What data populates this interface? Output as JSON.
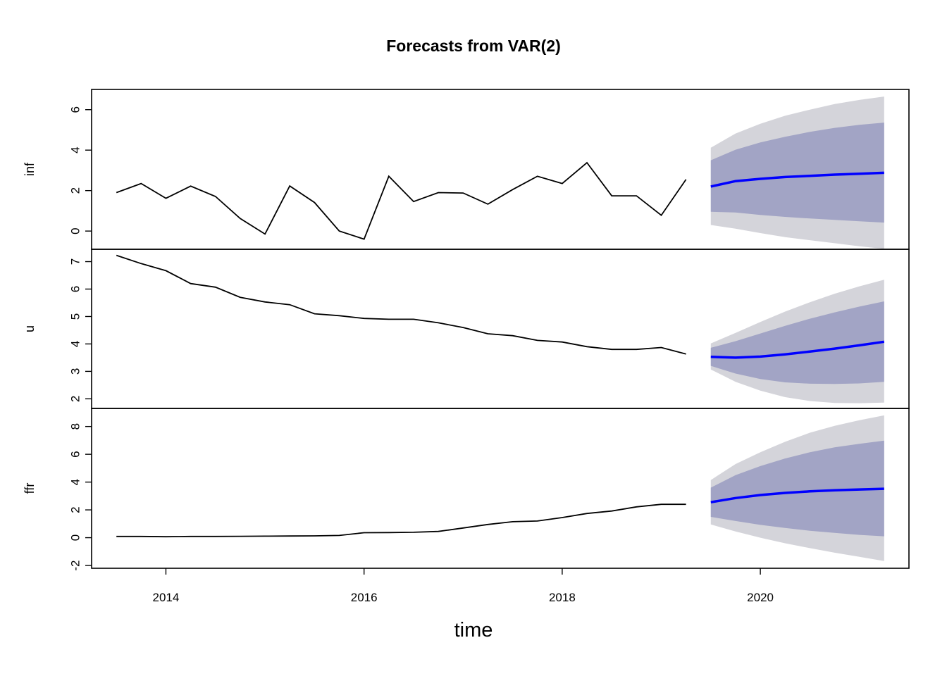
{
  "chart_data": {
    "type": "line",
    "title": "Forecasts from VAR(2)",
    "xlabel": "time",
    "xlim": [
      2013.25,
      2021.5
    ],
    "xticks": [
      2014,
      2016,
      2018,
      2020
    ],
    "grid": false,
    "colors": {
      "history": "#000000",
      "forecast": "#0000ff",
      "band80": "#a2a4c5",
      "band95": "#d4d4da"
    },
    "history_x": [
      2013.5,
      2013.75,
      2014.0,
      2014.25,
      2014.5,
      2014.75,
      2015.0,
      2015.25,
      2015.5,
      2015.75,
      2016.0,
      2016.25,
      2016.5,
      2016.75,
      2017.0,
      2017.25,
      2017.5,
      2017.75,
      2018.0,
      2018.25,
      2018.5,
      2018.75,
      2019.0,
      2019.25
    ],
    "forecast_x": [
      2019.5,
      2019.75,
      2020.0,
      2020.25,
      2020.5,
      2020.75,
      2021.0,
      2021.25
    ],
    "panels": [
      {
        "name": "inf",
        "ylim": [
          -0.9,
          7.0
        ],
        "yticks": [
          0,
          2,
          4,
          6
        ],
        "history": [
          1.9,
          2.35,
          1.62,
          2.22,
          1.71,
          0.62,
          -0.15,
          2.23,
          1.41,
          0.0,
          -0.4,
          2.71,
          1.46,
          1.9,
          1.88,
          1.33,
          2.05,
          2.71,
          2.35,
          3.38,
          1.74,
          1.74,
          0.78,
          2.55
        ],
        "forecast": {
          "mean": [
            2.2,
            2.47,
            2.58,
            2.67,
            2.73,
            2.79,
            2.83,
            2.88
          ],
          "lo80": [
            0.95,
            0.92,
            0.8,
            0.7,
            0.62,
            0.55,
            0.48,
            0.42
          ],
          "hi80": [
            3.5,
            4.02,
            4.38,
            4.66,
            4.9,
            5.1,
            5.25,
            5.36
          ],
          "lo95": [
            0.3,
            0.12,
            -0.1,
            -0.3,
            -0.45,
            -0.6,
            -0.75,
            -0.88
          ],
          "hi95": [
            4.12,
            4.82,
            5.3,
            5.7,
            6.0,
            6.28,
            6.48,
            6.65
          ]
        }
      },
      {
        "name": "u",
        "ylim": [
          1.65,
          7.45
        ],
        "yticks": [
          2,
          3,
          4,
          5,
          6,
          7
        ],
        "history": [
          7.23,
          6.93,
          6.67,
          6.2,
          6.07,
          5.7,
          5.53,
          5.43,
          5.1,
          5.03,
          4.93,
          4.9,
          4.9,
          4.77,
          4.6,
          4.37,
          4.3,
          4.13,
          4.07,
          3.9,
          3.8,
          3.8,
          3.87,
          3.63
        ],
        "forecast": {
          "mean": [
            3.53,
            3.5,
            3.54,
            3.62,
            3.72,
            3.83,
            3.95,
            4.08
          ],
          "lo80": [
            3.2,
            2.92,
            2.72,
            2.6,
            2.55,
            2.54,
            2.56,
            2.62
          ],
          "hi80": [
            3.86,
            4.1,
            4.38,
            4.66,
            4.92,
            5.15,
            5.36,
            5.55
          ],
          "lo95": [
            3.07,
            2.62,
            2.3,
            2.06,
            1.92,
            1.85,
            1.84,
            1.86
          ],
          "hi95": [
            4.02,
            4.4,
            4.8,
            5.18,
            5.52,
            5.83,
            6.1,
            6.34
          ]
        }
      },
      {
        "name": "ffr",
        "ylim": [
          -2.2,
          9.3
        ],
        "yticks": [
          -2,
          0,
          2,
          4,
          6,
          8
        ],
        "history": [
          0.09,
          0.09,
          0.07,
          0.09,
          0.09,
          0.1,
          0.11,
          0.12,
          0.13,
          0.16,
          0.36,
          0.37,
          0.39,
          0.45,
          0.7,
          0.95,
          1.15,
          1.2,
          1.45,
          1.74,
          1.92,
          2.22,
          2.4,
          2.4
        ],
        "forecast": {
          "mean": [
            2.55,
            2.85,
            3.07,
            3.22,
            3.33,
            3.41,
            3.47,
            3.52
          ],
          "lo80": [
            1.5,
            1.2,
            0.92,
            0.7,
            0.5,
            0.35,
            0.2,
            0.1
          ],
          "hi80": [
            3.6,
            4.5,
            5.15,
            5.7,
            6.15,
            6.5,
            6.75,
            6.98
          ],
          "lo95": [
            0.95,
            0.45,
            0.0,
            -0.4,
            -0.75,
            -1.08,
            -1.38,
            -1.68
          ],
          "hi95": [
            4.15,
            5.3,
            6.15,
            6.9,
            7.55,
            8.05,
            8.45,
            8.8
          ]
        }
      }
    ]
  }
}
